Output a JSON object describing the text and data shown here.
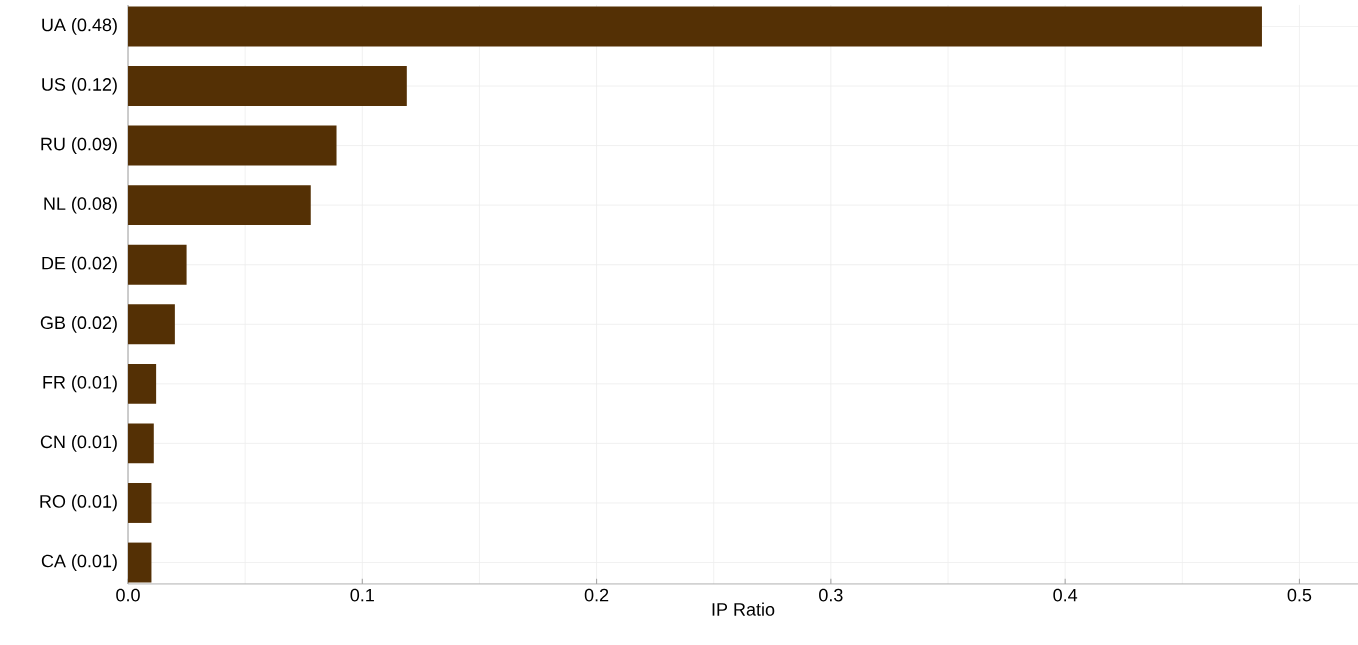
{
  "chart_data": {
    "type": "bar",
    "orientation": "horizontal",
    "xlabel": "IP Ratio",
    "categories": [
      "UA (0.48)",
      "US (0.12)",
      "RU (0.09)",
      "NL (0.08)",
      "DE (0.02)",
      "GB (0.02)",
      "FR (0.01)",
      "CN (0.01)",
      "RO (0.01)",
      "CA (0.01)"
    ],
    "values": [
      0.484,
      0.119,
      0.089,
      0.078,
      0.025,
      0.02,
      0.012,
      0.011,
      0.01,
      0.01
    ],
    "color": "#543005",
    "xlim": [
      0,
      0.525
    ],
    "xticks": [
      {
        "value": 0,
        "label": "0.0"
      },
      0.1,
      0.2,
      0.3,
      0.4,
      0.5
    ],
    "grid": true
  }
}
